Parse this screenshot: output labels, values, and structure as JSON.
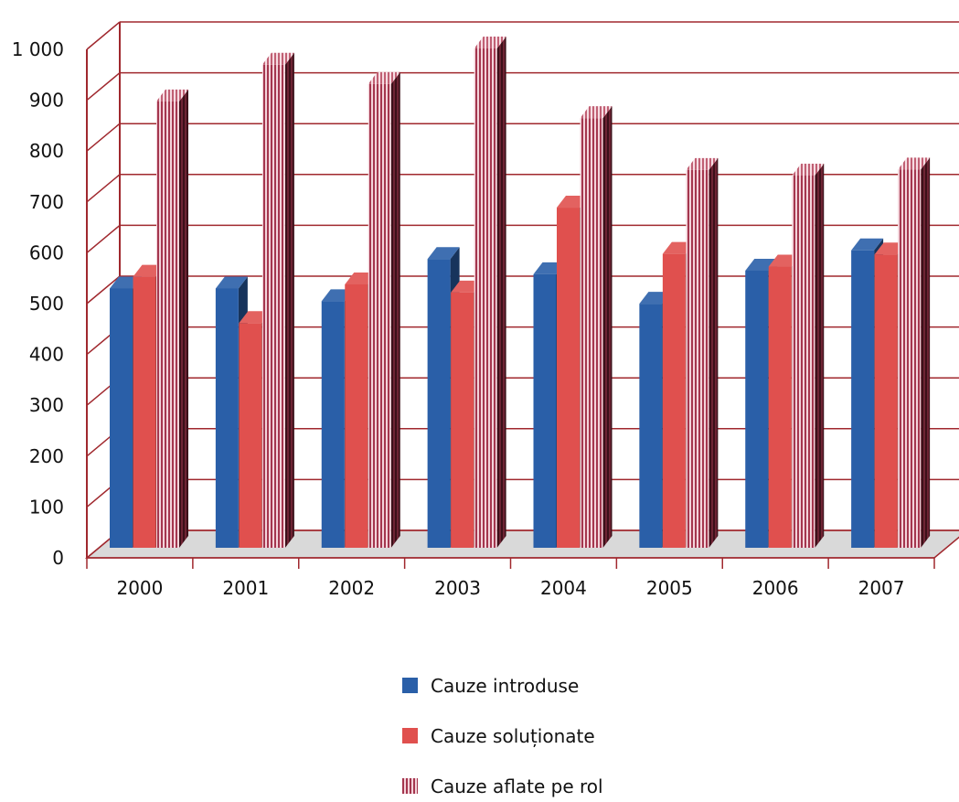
{
  "chart_data": {
    "type": "bar",
    "title": "",
    "xlabel": "",
    "ylabel": "",
    "categories": [
      "2000",
      "2001",
      "2002",
      "2003",
      "2004",
      "2005",
      "2006",
      "2007"
    ],
    "series": [
      {
        "name": "Cauze introduse",
        "values": [
          510,
          510,
          485,
          568,
          538,
          480,
          545,
          585
        ],
        "color": "#2a5fa8"
      },
      {
        "name": "Cauze soluționate",
        "values": [
          533,
          442,
          518,
          502,
          669,
          578,
          553,
          577
        ],
        "color": "#e0504e"
      },
      {
        "name": "Cauze aflate pe rol",
        "values": [
          878,
          950,
          912,
          982,
          845,
          743,
          732,
          744
        ],
        "color": "#e8b8c4",
        "pattern": "vertical-stripes"
      }
    ],
    "ylim": [
      0,
      1000
    ],
    "yticks": [
      "0",
      "100",
      "200",
      "300",
      "400",
      "500",
      "600",
      "700",
      "800",
      "900",
      "1 000"
    ],
    "grid": true,
    "legend_position": "bottom",
    "style": "3d-clustered-column",
    "frame_color": "#a0282e",
    "floor_color": "#d9d9d9"
  }
}
